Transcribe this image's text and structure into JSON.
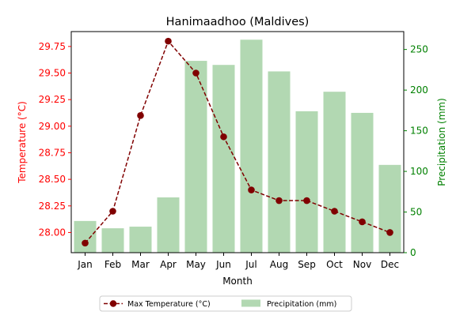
{
  "chart_data": {
    "type": "bar+line",
    "title": "Hanimaadhoo (Maldives)",
    "xlabel": "Month",
    "categories": [
      "Jan",
      "Feb",
      "Mar",
      "Apr",
      "May",
      "Jun",
      "Jul",
      "Aug",
      "Sep",
      "Oct",
      "Nov",
      "Dec"
    ],
    "left_axis": {
      "label": "Temperature (°C)",
      "color": "#ff0000",
      "range": [
        27.81,
        29.89
      ],
      "ticks": [
        28.0,
        28.25,
        28.5,
        28.75,
        29.0,
        29.25,
        29.5,
        29.75
      ],
      "tick_labels": [
        "28.00",
        "28.25",
        "28.50",
        "28.75",
        "29.00",
        "29.25",
        "29.50",
        "29.75"
      ]
    },
    "right_axis": {
      "label": "Precipitation (mm)",
      "color": "#008000",
      "range": [
        0,
        272
      ],
      "ticks": [
        0,
        50,
        100,
        150,
        200,
        250
      ],
      "tick_labels": [
        "0",
        "50",
        "100",
        "150",
        "200",
        "250"
      ]
    },
    "series": [
      {
        "name": "Max Temperature (°C)",
        "type": "line",
        "axis": "left",
        "color": "#800000",
        "line_style": "dashed",
        "marker": "circle",
        "values": [
          27.9,
          28.2,
          29.1,
          29.8,
          29.5,
          28.9,
          28.4,
          28.3,
          28.3,
          28.2,
          28.1,
          28.0
        ]
      },
      {
        "name": "Precipitation (mm)",
        "type": "bar",
        "axis": "right",
        "color": "#b2d8b2",
        "values": [
          39,
          30,
          32,
          68,
          236,
          231,
          262,
          223,
          174,
          198,
          172,
          108
        ]
      }
    ],
    "legend_position": "bottom-center",
    "grid": false
  }
}
